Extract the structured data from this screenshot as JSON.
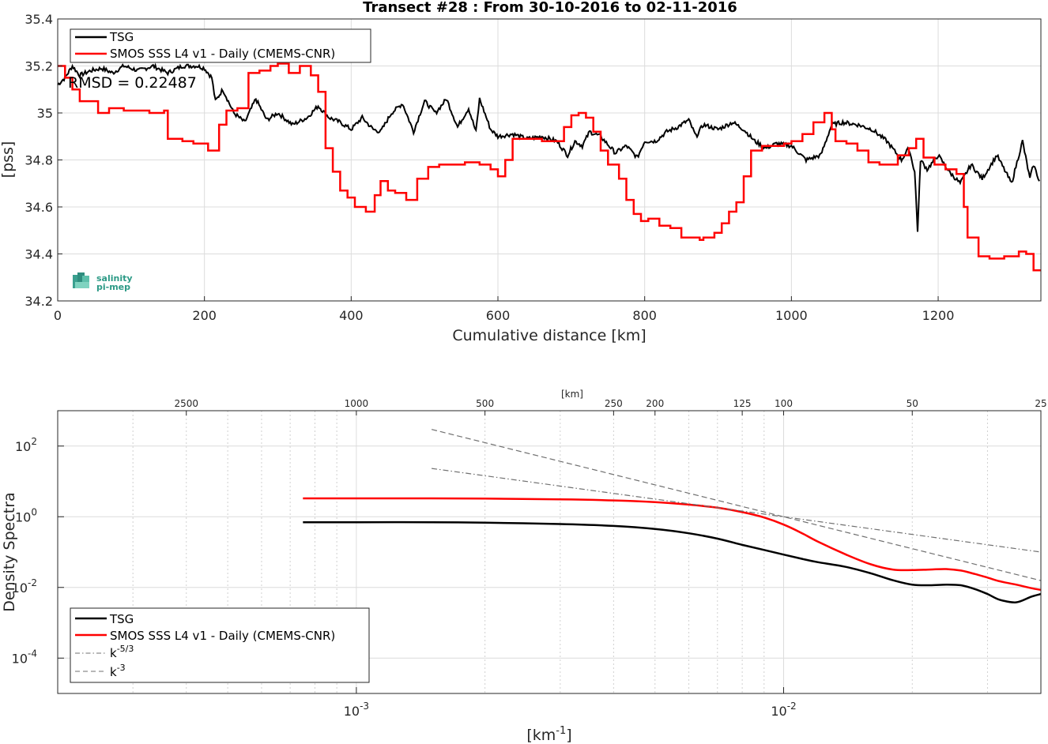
{
  "chart_data": [
    {
      "type": "line",
      "title": "Transect #28 : From 30-10-2016 to 02-11-2016",
      "xlabel": "Cumulative distance [km]",
      "ylabel": "[pss]",
      "xlim": [
        0,
        1340
      ],
      "ylim": [
        34.2,
        35.4
      ],
      "xticks": [
        0,
        200,
        400,
        600,
        800,
        1000,
        1200
      ],
      "yticks": [
        34.2,
        34.4,
        34.6,
        34.8,
        35,
        35.2,
        35.4
      ],
      "grid": true,
      "legend_position": "top-left",
      "annotation": "RMSD = 0.22487",
      "logo": {
        "line1": "salinity",
        "line2": "pi-mep"
      },
      "series": [
        {
          "name": "TSG",
          "color": "#000000",
          "x": [
            0,
            10,
            20,
            30,
            45,
            60,
            75,
            90,
            110,
            130,
            150,
            170,
            190,
            200,
            210,
            215,
            225,
            240,
            255,
            270,
            285,
            300,
            320,
            340,
            355,
            370,
            385,
            400,
            415,
            430,
            440,
            455,
            470,
            485,
            500,
            515,
            530,
            545,
            560,
            570,
            575,
            590,
            600,
            620,
            640,
            660,
            680,
            695,
            705,
            715,
            725,
            740,
            760,
            775,
            790,
            800,
            815,
            830,
            845,
            860,
            870,
            880,
            900,
            920,
            935,
            950,
            965,
            980,
            1000,
            1020,
            1040,
            1055,
            1070,
            1090,
            1110,
            1130,
            1150,
            1160,
            1168,
            1172,
            1176,
            1185,
            1200,
            1215,
            1230,
            1245,
            1260,
            1280,
            1300,
            1315,
            1325,
            1330,
            1338
          ],
          "y": [
            35.12,
            35.15,
            35.2,
            35.16,
            35.18,
            35.19,
            35.17,
            35.2,
            35.18,
            35.2,
            35.17,
            35.2,
            35.2,
            35.19,
            35.15,
            35.05,
            35.1,
            35.0,
            34.96,
            35.06,
            34.97,
            35.0,
            34.95,
            34.98,
            35.03,
            34.98,
            34.96,
            34.93,
            34.98,
            34.93,
            34.92,
            35.0,
            35.04,
            34.92,
            35.05,
            35.0,
            35.06,
            34.94,
            35.02,
            34.92,
            35.06,
            34.93,
            34.9,
            34.91,
            34.89,
            34.9,
            34.88,
            34.82,
            34.88,
            34.86,
            34.92,
            34.9,
            34.83,
            34.86,
            34.81,
            34.88,
            34.88,
            34.92,
            34.94,
            34.97,
            34.9,
            34.95,
            34.93,
            34.96,
            34.93,
            34.88,
            34.85,
            34.87,
            34.86,
            34.8,
            34.82,
            34.95,
            34.96,
            34.95,
            34.93,
            34.88,
            34.8,
            34.85,
            34.75,
            34.5,
            34.8,
            34.76,
            34.82,
            34.75,
            34.7,
            34.78,
            34.72,
            34.82,
            34.7,
            34.88,
            34.72,
            34.78,
            34.71
          ]
        },
        {
          "name": "SMOS SSS L4 v1 - Daily (CMEMS-CNR)",
          "color": "#ff0000",
          "x": [
            0,
            10,
            20,
            30,
            55,
            70,
            90,
            110,
            125,
            145,
            150,
            170,
            185,
            205,
            220,
            230,
            245,
            260,
            275,
            290,
            300,
            315,
            330,
            345,
            355,
            365,
            375,
            385,
            395,
            405,
            420,
            432,
            440,
            450,
            460,
            475,
            490,
            505,
            520,
            540,
            555,
            575,
            590,
            600,
            610,
            620,
            640,
            660,
            680,
            690,
            700,
            710,
            720,
            730,
            740,
            750,
            765,
            775,
            785,
            795,
            805,
            820,
            835,
            850,
            865,
            875,
            880,
            895,
            905,
            915,
            925,
            935,
            945,
            960,
            975,
            990,
            1000,
            1015,
            1030,
            1045,
            1055,
            1060,
            1075,
            1090,
            1105,
            1120,
            1145,
            1160,
            1170,
            1180,
            1195,
            1210,
            1225,
            1235,
            1240,
            1255,
            1270,
            1290,
            1310,
            1320,
            1330,
            1338
          ],
          "y": [
            35.2,
            35.15,
            35.1,
            35.05,
            35.0,
            35.02,
            35.01,
            35.01,
            35.0,
            35.01,
            34.89,
            34.88,
            34.87,
            34.84,
            34.95,
            35.01,
            35.02,
            35.17,
            35.18,
            35.2,
            35.21,
            35.17,
            35.2,
            35.16,
            35.09,
            34.85,
            34.75,
            34.67,
            34.64,
            34.6,
            34.58,
            34.65,
            34.71,
            34.67,
            34.66,
            34.63,
            34.72,
            34.77,
            34.78,
            34.78,
            34.79,
            34.78,
            34.76,
            34.73,
            34.8,
            34.89,
            34.89,
            34.88,
            34.88,
            34.94,
            34.99,
            35.0,
            34.98,
            34.92,
            34.84,
            34.78,
            34.72,
            34.63,
            34.57,
            34.54,
            34.55,
            34.52,
            34.51,
            34.47,
            34.47,
            34.46,
            34.47,
            34.49,
            34.53,
            34.58,
            34.62,
            34.73,
            34.84,
            34.86,
            34.86,
            34.87,
            34.88,
            34.91,
            34.96,
            35.0,
            34.93,
            34.88,
            34.87,
            34.84,
            34.79,
            34.78,
            34.82,
            34.85,
            34.89,
            34.81,
            34.78,
            34.76,
            34.74,
            34.6,
            34.47,
            34.39,
            34.38,
            34.39,
            34.41,
            34.4,
            34.33,
            34.33
          ]
        }
      ]
    },
    {
      "type": "line",
      "title": "",
      "xlabel": "[km-1]",
      "xlabel_base": "[km",
      "xlabel_exp": "-1",
      "xlabel_close": "]",
      "ylabel": "Density Spectra",
      "xscale": "log",
      "yscale": "log",
      "xlim": [
        0.0002,
        0.04
      ],
      "ylim": [
        1e-05,
        1000
      ],
      "xticks": [
        {
          "value": 0.001,
          "base": "10",
          "exp": "-3"
        },
        {
          "value": 0.01,
          "base": "10",
          "exp": "-2"
        }
      ],
      "yticks": [
        {
          "value": 0.0001,
          "base": "10",
          "exp": "-4"
        },
        {
          "value": 0.01,
          "base": "10",
          "exp": "-2"
        },
        {
          "value": 1,
          "base": "10",
          "exp": "0"
        },
        {
          "value": 100,
          "base": "10",
          "exp": "2"
        }
      ],
      "top_axis_label": "[km]",
      "top_axis_ticks": [
        2500,
        1000,
        500,
        250,
        200,
        125,
        100,
        50,
        25
      ],
      "grid": true,
      "legend_position": "bottom-left",
      "series": [
        {
          "name": "TSG",
          "color": "#000000",
          "style": "solid",
          "x": [
            0.00075,
            0.001,
            0.0015,
            0.002,
            0.003,
            0.004,
            0.005,
            0.006,
            0.007,
            0.008,
            0.009,
            0.01,
            0.011,
            0.012,
            0.014,
            0.016,
            0.018,
            0.02,
            0.022,
            0.024,
            0.026,
            0.028,
            0.03,
            0.032,
            0.035,
            0.038,
            0.04
          ],
          "y": [
            0.7,
            0.7,
            0.7,
            0.68,
            0.62,
            0.55,
            0.45,
            0.34,
            0.24,
            0.16,
            0.115,
            0.085,
            0.065,
            0.052,
            0.038,
            0.025,
            0.016,
            0.012,
            0.0115,
            0.012,
            0.0115,
            0.009,
            0.0065,
            0.0045,
            0.0038,
            0.0055,
            0.0065
          ]
        },
        {
          "name": "SMOS SSS L4 v1 - Daily (CMEMS-CNR)",
          "color": "#ff0000",
          "style": "solid",
          "x": [
            0.00075,
            0.001,
            0.0015,
            0.002,
            0.003,
            0.004,
            0.005,
            0.006,
            0.007,
            0.008,
            0.009,
            0.01,
            0.011,
            0.012,
            0.014,
            0.016,
            0.018,
            0.02,
            0.022,
            0.024,
            0.026,
            0.028,
            0.03,
            0.032,
            0.035,
            0.038,
            0.04
          ],
          "y": [
            3.3,
            3.3,
            3.3,
            3.25,
            3.1,
            2.9,
            2.6,
            2.2,
            1.8,
            1.35,
            0.95,
            0.6,
            0.35,
            0.2,
            0.085,
            0.045,
            0.032,
            0.031,
            0.032,
            0.033,
            0.03,
            0.024,
            0.019,
            0.015,
            0.012,
            0.0095,
            0.0085
          ]
        },
        {
          "name": "k-5/3",
          "label_base": "k",
          "label_exp": "-5/3",
          "color": "#707070",
          "style": "dashdot",
          "x": [
            0.0015,
            0.04
          ],
          "y": [
            23.2,
            0.1
          ]
        },
        {
          "name": "k-3",
          "label_base": "k",
          "label_exp": "-3",
          "color": "#707070",
          "style": "dashed",
          "x": [
            0.0015,
            0.04
          ],
          "y": [
            296,
            0.0156
          ]
        }
      ]
    }
  ]
}
